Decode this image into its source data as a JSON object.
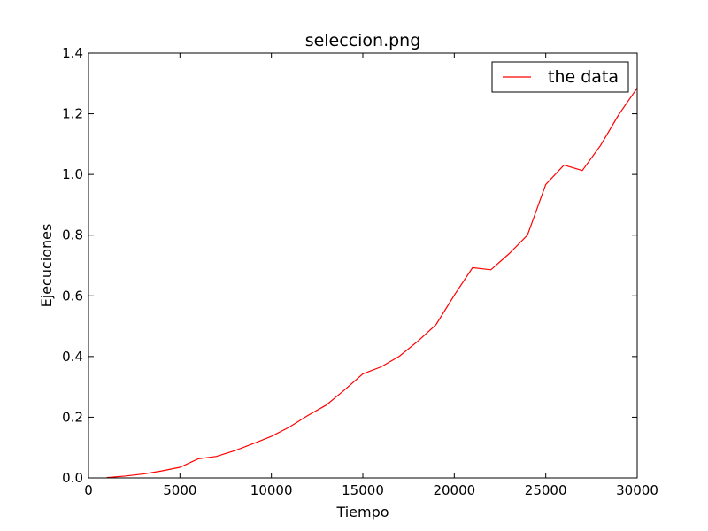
{
  "chart_data": {
    "type": "line",
    "title": "seleccion.png",
    "xlabel": "Tiempo",
    "ylabel": "Ejecuciones",
    "xlim": [
      0,
      30000
    ],
    "ylim": [
      0.0,
      1.4
    ],
    "x_ticks": [
      "0",
      "5000",
      "10000",
      "15000",
      "20000",
      "25000",
      "30000"
    ],
    "y_ticks": [
      "0.0",
      "0.2",
      "0.4",
      "0.6",
      "0.8",
      "1.0",
      "1.2",
      "1.4"
    ],
    "grid": false,
    "legend_position": "top-right",
    "series": [
      {
        "name": "the data",
        "color": "#ff0000",
        "x": [
          1000,
          2000,
          3000,
          4000,
          5000,
          6000,
          7000,
          8000,
          9000,
          10000,
          11000,
          12000,
          13000,
          14000,
          15000,
          16000,
          17000,
          18000,
          19000,
          20000,
          21000,
          22000,
          23000,
          24000,
          25000,
          26000,
          27000,
          28000,
          29000,
          30000
        ],
        "y": [
          0.001,
          0.006,
          0.013,
          0.023,
          0.035,
          0.063,
          0.071,
          0.09,
          0.113,
          0.137,
          0.168,
          0.206,
          0.24,
          0.29,
          0.343,
          0.366,
          0.401,
          0.45,
          0.505,
          0.602,
          0.693,
          0.686,
          0.739,
          0.8,
          0.967,
          1.031,
          1.013,
          1.096,
          1.198,
          1.285
        ]
      }
    ]
  }
}
